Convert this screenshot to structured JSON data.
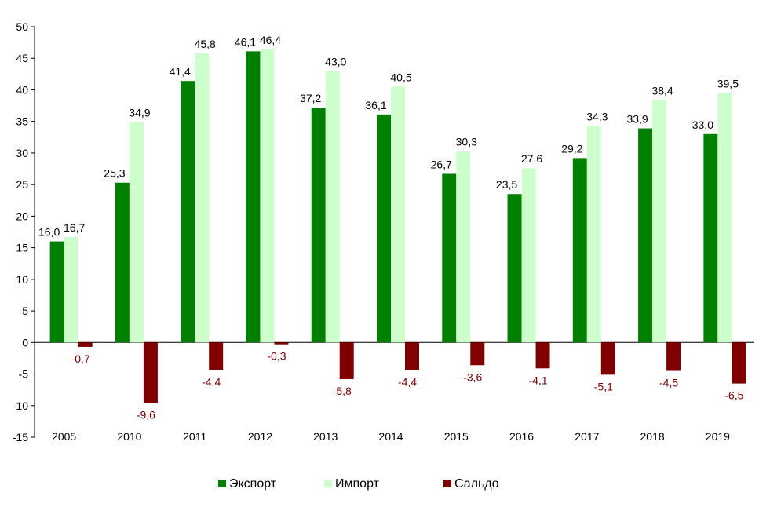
{
  "chart_data": {
    "type": "bar",
    "title": "",
    "xlabel": "",
    "ylabel": "",
    "categories": [
      "2005",
      "2010",
      "2011",
      "2012",
      "2013",
      "2014",
      "2015",
      "2016",
      "2017",
      "2018",
      "2019"
    ],
    "ylim": [
      -15,
      50
    ],
    "yticks": [
      50,
      45,
      40,
      35,
      30,
      25,
      20,
      15,
      10,
      5,
      0,
      -5,
      -10,
      -15
    ],
    "ytick_labels": [
      "50",
      "45",
      "40",
      "35",
      "30",
      "25",
      "20",
      "15",
      "10",
      "5",
      "0",
      "-5",
      "-10",
      "-15"
    ],
    "grid": false,
    "legend_position": "bottom",
    "series": [
      {
        "name": "Экспорт",
        "color": "#008000",
        "values": [
          16.0,
          25.3,
          41.4,
          46.1,
          37.2,
          36.1,
          26.7,
          23.5,
          29.2,
          33.9,
          33.0
        ],
        "labels": [
          "16,0",
          "25,3",
          "41,4",
          "46,1",
          "37,2",
          "36,1",
          "26,7",
          "23,5",
          "29,2",
          "33,9",
          "33,0"
        ],
        "label_color": "#000000"
      },
      {
        "name": "Импорт",
        "color": "#ccffcc",
        "values": [
          16.7,
          34.9,
          45.8,
          46.4,
          43.0,
          40.5,
          30.3,
          27.6,
          34.3,
          38.4,
          39.5
        ],
        "labels": [
          "16,7",
          "34,9",
          "45,8",
          "46,4",
          "43,0",
          "40,5",
          "30,3",
          "27,6",
          "34,3",
          "38,4",
          "39,5"
        ],
        "label_color": "#000000"
      },
      {
        "name": "Сальдо",
        "color": "#800000",
        "values": [
          -0.7,
          -9.6,
          -4.4,
          -0.3,
          -5.8,
          -4.4,
          -3.6,
          -4.1,
          -5.1,
          -4.5,
          -6.5
        ],
        "labels": [
          "-0,7",
          "-9,6",
          "-4,4",
          "-0,3",
          "-5,8",
          "-4,4",
          "-3,6",
          "-4,1",
          "-5,1",
          "-4,5",
          "-6,5"
        ],
        "label_color": "#800000"
      }
    ]
  }
}
